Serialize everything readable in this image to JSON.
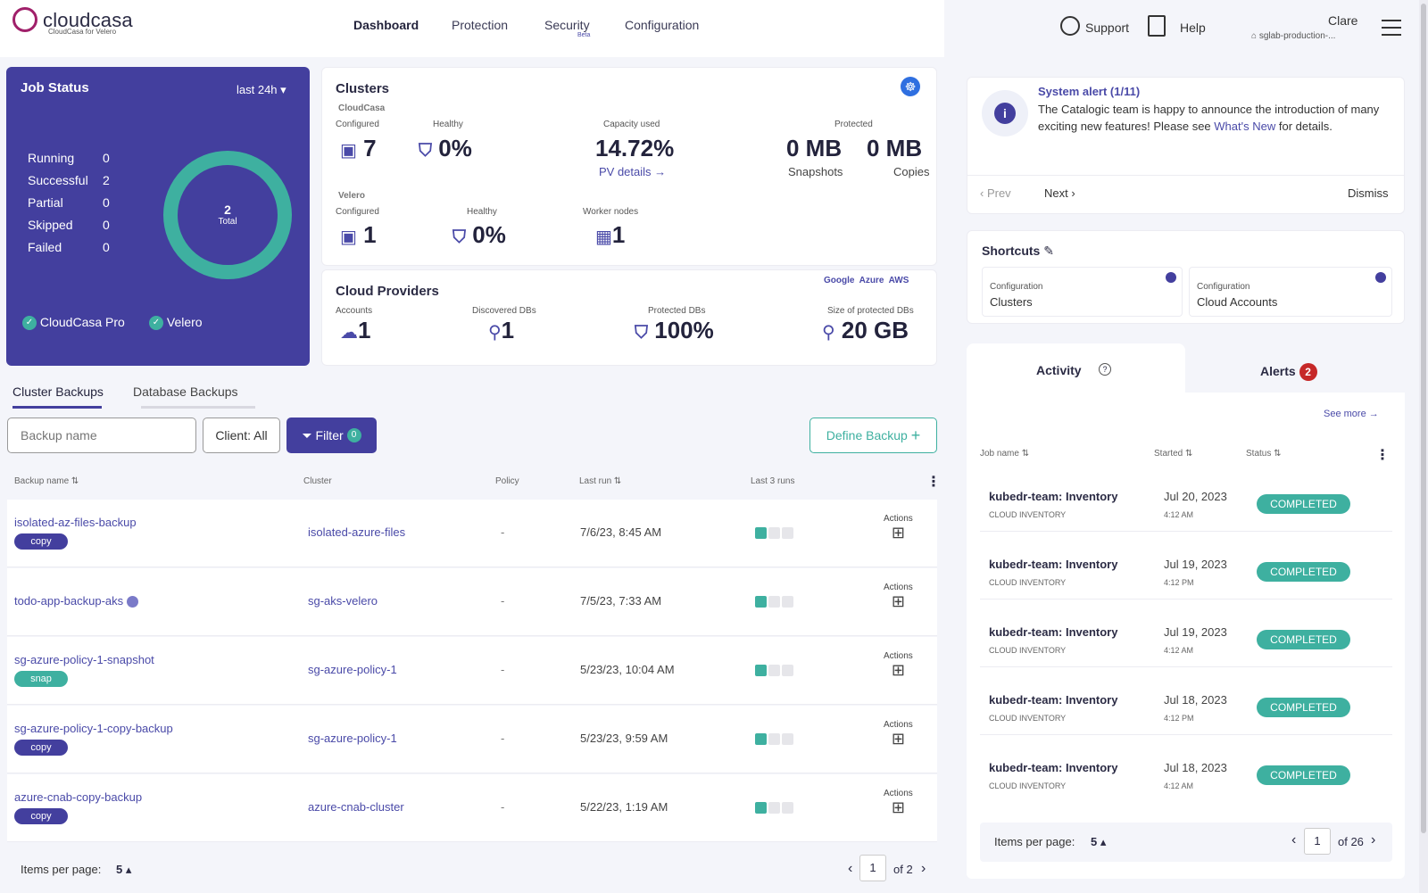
{
  "brand": {
    "name": "cloudcasa",
    "tagline": "CloudCasa for Velero"
  },
  "nav": {
    "items": [
      "Dashboard",
      "Protection",
      "Security",
      "Configuration"
    ],
    "beta": "Beta"
  },
  "header": {
    "support": "Support",
    "help": "Help",
    "user": "Clare",
    "org": "sglab-production-..."
  },
  "job_status": {
    "title": "Job Status",
    "range": "last 24h",
    "items": [
      {
        "label": "Running",
        "value": "0"
      },
      {
        "label": "Successful",
        "value": "2"
      },
      {
        "label": "Partial",
        "value": "0"
      },
      {
        "label": "Skipped",
        "value": "0"
      },
      {
        "label": "Failed",
        "value": "0"
      }
    ],
    "total": "2",
    "total_label": "Total",
    "cloudcasa_pro": "CloudCasa Pro",
    "velero": "Velero"
  },
  "clusters": {
    "title": "Clusters",
    "cloudcasa": "CloudCasa",
    "configured_label": "Configured",
    "configured": "7",
    "healthy_label": "Healthy",
    "healthy": "0%",
    "capacity_label": "Capacity used",
    "capacity": "14.72%",
    "pv_details": "PV details →",
    "protected_label": "Protected",
    "snapshots": "0 MB",
    "snapshots_label": "Snapshots",
    "copies": "0 MB",
    "copies_label": "Copies",
    "velero": "Velero",
    "velero_configured": "1",
    "velero_healthy": "0%",
    "worker_label": "Worker nodes",
    "worker": "1"
  },
  "cloud": {
    "title": "Cloud Providers",
    "accounts_label": "Accounts",
    "accounts": "1",
    "dbs_label": "Discovered DBs",
    "dbs": "1",
    "protected_label": "Protected DBs",
    "protected": "100%",
    "size_label": "Size of protected DBs",
    "size": "20 GB",
    "providers": [
      "Google",
      "Azure",
      "AWS"
    ]
  },
  "alert": {
    "title": "System alert (1/11)",
    "text1": "The Catalogic team is happy to announce the introduction of many exciting new features! Please see ",
    "link": "What's New",
    "text2": " for details.",
    "prev": "Prev",
    "next": "Next",
    "dismiss": "Dismiss"
  },
  "shortcuts": {
    "title": "Shortcuts",
    "items": [
      {
        "cat": "Configuration",
        "name": "Clusters"
      },
      {
        "cat": "Configuration",
        "name": "Cloud Accounts"
      }
    ]
  },
  "tabs": {
    "cluster": "Cluster Backups",
    "database": "Database Backups"
  },
  "toolbar": {
    "search_placeholder": "Backup name",
    "client": "Client: All",
    "filter": "Filter",
    "filter_count": "0",
    "define": "Define Backup"
  },
  "table": {
    "headers": [
      "Backup name",
      "Cluster",
      "Policy",
      "Last run",
      "Last 3 runs"
    ],
    "actions": "Actions",
    "rows": [
      {
        "name": "isolated-az-files-backup",
        "tag": "copy",
        "cluster": "isolated-azure-files",
        "policy": "-",
        "last_run": "7/6/23, 8:45 AM"
      },
      {
        "name": "todo-app-backup-aks",
        "tag": "",
        "cluster": "sg-aks-velero",
        "policy": "-",
        "last_run": "7/5/23, 7:33 AM"
      },
      {
        "name": "sg-azure-policy-1-snapshot",
        "tag": "snap",
        "cluster": "sg-azure-policy-1",
        "policy": "-",
        "last_run": "5/23/23, 10:04 AM"
      },
      {
        "name": "sg-azure-policy-1-copy-backup",
        "tag": "copy",
        "cluster": "sg-azure-policy-1",
        "policy": "-",
        "last_run": "5/23/23, 9:59 AM"
      },
      {
        "name": "azure-cnab-copy-backup",
        "tag": "copy",
        "cluster": "azure-cnab-cluster",
        "policy": "-",
        "last_run": "5/22/23, 1:19 AM"
      }
    ],
    "items_per_page_label": "Items per page:",
    "items_per_page": "5",
    "page": "1",
    "of": "of 2"
  },
  "activity": {
    "tab": "Activity",
    "alerts_tab": "Alerts",
    "alerts_count": "2",
    "see_more": "See more →",
    "headers": [
      "Job name",
      "Started",
      "Status"
    ],
    "rows": [
      {
        "job": "kubedr-team: Inventory",
        "type": "CLOUD INVENTORY",
        "date": "Jul 20, 2023",
        "time": "4:12 AM",
        "status": "COMPLETED"
      },
      {
        "job": "kubedr-team: Inventory",
        "type": "CLOUD INVENTORY",
        "date": "Jul 19, 2023",
        "time": "4:12 PM",
        "status": "COMPLETED"
      },
      {
        "job": "kubedr-team: Inventory",
        "type": "CLOUD INVENTORY",
        "date": "Jul 19, 2023",
        "time": "4:12 AM",
        "status": "COMPLETED"
      },
      {
        "job": "kubedr-team: Inventory",
        "type": "CLOUD INVENTORY",
        "date": "Jul 18, 2023",
        "time": "4:12 PM",
        "status": "COMPLETED"
      },
      {
        "job": "kubedr-team: Inventory",
        "type": "CLOUD INVENTORY",
        "date": "Jul 18, 2023",
        "time": "4:12 AM",
        "status": "COMPLETED"
      }
    ],
    "items_per_page_label": "Items per page:",
    "items_per_page": "5",
    "page": "1",
    "of": "of 26"
  },
  "colors": {
    "primary": "#433f9e",
    "teal": "#3eb0a0",
    "alert_red": "#c62828"
  }
}
